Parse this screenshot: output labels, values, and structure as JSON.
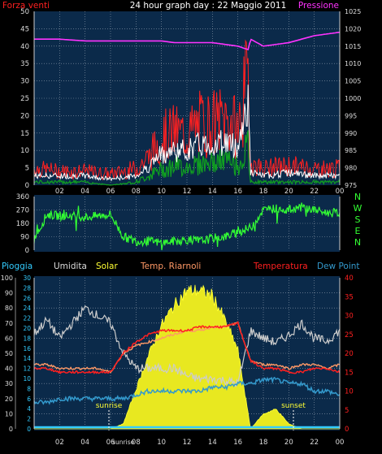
{
  "title": "24 hour graph day : 22 Maggio 2011",
  "x_ticks": [
    "02",
    "04",
    "06",
    "08",
    "10",
    "12",
    "14",
    "16",
    "18",
    "20",
    "22",
    "00"
  ],
  "panel1": {
    "left_label": "Forza venti",
    "right_label": "Pressione",
    "left_ticks": [
      "0",
      "5",
      "10",
      "15",
      "20",
      "25",
      "30",
      "35",
      "40",
      "45",
      "50"
    ],
    "right_ticks": [
      "975",
      "980",
      "985",
      "990",
      "995",
      "1000",
      "1005",
      "1010",
      "1015",
      "1020",
      "1025"
    ],
    "colors": {
      "wind_max": "#ff2020",
      "wind_avg": "#ffffff",
      "wind_min": "#10a020",
      "pressure": "#ff33ff"
    }
  },
  "panel2": {
    "left_ticks": [
      "0",
      "90",
      "180",
      "270",
      "360"
    ],
    "compass": [
      "N",
      "W",
      "S",
      "E",
      "N"
    ],
    "color": "#33ff33"
  },
  "panel3": {
    "legend": [
      {
        "label": "Pioggia",
        "color": "#33ccff"
      },
      {
        "label": "Umidita",
        "color": "#dddddd"
      },
      {
        "label": "Solar",
        "color": "#ffff33"
      },
      {
        "label": "Temp. Riarnoli",
        "color": "#ff9966"
      },
      {
        "label": "Temperatura",
        "color": "#ff2020"
      },
      {
        "label": "Dew Point",
        "color": "#3399cc"
      }
    ],
    "left_ticks": [
      "0",
      "10",
      "20",
      "30",
      "40",
      "50",
      "60",
      "70",
      "80",
      "90",
      "100"
    ],
    "mid_ticks": [
      "0",
      "2",
      "4",
      "6",
      "8",
      "10",
      "12",
      "14",
      "16",
      "18",
      "20",
      "22",
      "24",
      "26",
      "28",
      "30"
    ],
    "right_ticks": [
      "0",
      "5",
      "10",
      "15",
      "20",
      "25",
      "30",
      "35",
      "40"
    ],
    "sunrise_label": "sunrise",
    "sunset_label": "sunset",
    "sunrise_tick": "sunrise"
  },
  "chart_data": [
    {
      "type": "line",
      "title": "24 hour graph day : 22 Maggio 2011",
      "ylabel": "Forza venti",
      "ylabel_right": "Pressione",
      "ylim": [
        0,
        50
      ],
      "ylim_right": [
        975,
        1025
      ],
      "x": [
        0,
        2,
        4,
        6,
        8,
        9,
        10,
        11,
        12,
        13,
        14,
        15,
        16,
        16.8,
        17,
        18,
        20,
        22,
        24
      ],
      "series": [
        {
          "name": "Pressione",
          "axis": "right",
          "values": [
            1017,
            1017,
            1016.5,
            1016.5,
            1016.5,
            1016.5,
            1016.5,
            1016,
            1016,
            1016,
            1016,
            1015.5,
            1015,
            1014,
            1017,
            1015,
            1016,
            1018,
            1019
          ]
        },
        {
          "name": "max",
          "values": [
            6,
            5,
            5,
            4,
            6,
            10,
            17,
            19,
            18,
            22,
            22,
            24,
            20,
            38,
            8,
            6,
            7,
            6,
            6
          ]
        },
        {
          "name": "avg",
          "values": [
            3,
            3,
            3,
            2,
            3,
            6,
            10,
            11,
            11,
            13,
            13,
            14,
            12,
            28,
            4,
            3,
            4,
            3,
            3
          ]
        },
        {
          "name": "min",
          "values": [
            1,
            1,
            1,
            0,
            1,
            3,
            5,
            6,
            6,
            7,
            7,
            8,
            6,
            12,
            1,
            1,
            1,
            1,
            1
          ]
        }
      ]
    },
    {
      "type": "line",
      "ylim": [
        0,
        360
      ],
      "x": [
        0,
        1,
        2,
        3,
        4,
        5,
        6,
        7,
        8,
        9,
        10,
        11,
        12,
        13,
        14,
        15,
        16,
        17,
        18,
        19,
        20,
        21,
        22,
        23,
        24
      ],
      "series": [
        {
          "values": [
            70,
            240,
            230,
            230,
            220,
            230,
            240,
            90,
            60,
            60,
            50,
            60,
            70,
            60,
            80,
            90,
            120,
            150,
            270,
            280,
            270,
            290,
            270,
            250,
            250
          ]
        }
      ]
    },
    {
      "type": "line",
      "ylim": [
        0,
        100
      ],
      "ylim_right": [
        0,
        40
      ],
      "x": [
        0,
        1,
        2,
        3,
        4,
        5,
        6,
        7,
        8,
        9,
        10,
        11,
        12,
        13,
        14,
        15,
        16,
        17,
        18,
        19,
        20,
        21,
        22,
        23,
        24
      ],
      "series": [
        {
          "name": "Umidita",
          "values": [
            63,
            72,
            60,
            70,
            80,
            75,
            70,
            50,
            40,
            40,
            40,
            40,
            35,
            33,
            33,
            32,
            30,
            65,
            60,
            57,
            62,
            70,
            60,
            58,
            65
          ]
        },
        {
          "name": "Temp. Riarnoli",
          "axis": "right",
          "values": [
            17,
            17,
            16,
            16,
            16,
            16,
            15,
            20,
            22,
            23,
            24,
            25,
            26,
            26,
            27,
            27,
            28,
            18,
            17,
            17,
            16,
            17,
            17,
            16,
            17
          ]
        },
        {
          "name": "Temperatura",
          "axis": "right",
          "values": [
            16,
            16,
            15,
            15,
            15,
            15,
            15,
            20,
            23,
            25,
            26,
            26,
            26,
            27,
            27,
            27,
            28,
            18,
            16,
            16,
            15,
            15,
            16,
            16,
            15
          ]
        },
        {
          "name": "Dew Point",
          "axis": "right",
          "values": [
            7,
            7,
            8,
            8,
            8,
            8,
            8,
            8,
            9,
            10,
            10,
            10,
            10,
            10,
            11,
            11,
            12,
            12,
            13,
            13,
            12,
            12,
            10,
            10,
            9
          ]
        },
        {
          "name": "Solar",
          "axis": "mid",
          "values": [
            0,
            0,
            0,
            0,
            0,
            0,
            0,
            1,
            8,
            15,
            21,
            25,
            28,
            28,
            27,
            22,
            16,
            0,
            3,
            4,
            1,
            0,
            0,
            0,
            0
          ]
        },
        {
          "name": "Pioggia",
          "values": [
            0,
            0,
            0,
            0,
            0,
            0,
            0,
            0,
            0,
            0,
            0,
            0,
            0,
            0,
            0,
            0,
            0,
            0,
            0,
            0,
            0,
            0,
            0,
            0,
            0
          ]
        }
      ]
    }
  ]
}
